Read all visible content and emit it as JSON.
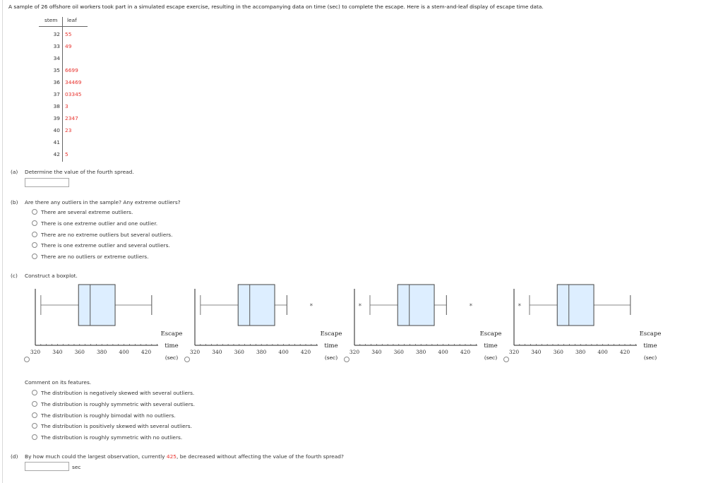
{
  "intro": "A sample of 26 offshore oil workers took part in a simulated escape exercise, resulting in the accompanying data on time (sec) to complete the escape. Here is a stem-and-leaf display of escape time data.",
  "stem_leaf": {
    "stem_header": "stem",
    "leaf_header": "leaf",
    "rows": [
      {
        "stem": "32",
        "leaf": "55"
      },
      {
        "stem": "33",
        "leaf": "49"
      },
      {
        "stem": "34",
        "leaf": ""
      },
      {
        "stem": "35",
        "leaf": "6699"
      },
      {
        "stem": "36",
        "leaf": "34469"
      },
      {
        "stem": "37",
        "leaf": "03345"
      },
      {
        "stem": "38",
        "leaf": "3"
      },
      {
        "stem": "39",
        "leaf": "2347"
      },
      {
        "stem": "40",
        "leaf": "23"
      },
      {
        "stem": "41",
        "leaf": ""
      },
      {
        "stem": "42",
        "leaf": "5"
      }
    ]
  },
  "part_a": {
    "label": "(a)",
    "question": "Determine the value of the fourth spread.",
    "answer_value": ""
  },
  "part_b": {
    "label": "(b)",
    "question": "Are there any outliers in the sample? Any extreme outliers?",
    "options": [
      "There are several extreme outliers.",
      "There is one extreme outlier and one outlier.",
      "There are no extreme outliers but several outliers.",
      "There is one extreme outlier and several outliers.",
      "There are no outliers or extreme outliers."
    ]
  },
  "part_c": {
    "label": "(c)",
    "question": "Construct a boxplot.",
    "axis_title_line1": "Escape",
    "axis_title_line2": "time",
    "axis_title_line3": "(sec)",
    "tick_labels": [
      "320",
      "340",
      "360",
      "380",
      "400",
      "420"
    ],
    "comment_prompt": "Comment on its features.",
    "comment_options": [
      "The distribution is negatively skewed with several outliers.",
      "The distribution is roughly symmetric with several outliers.",
      "The distribution is roughly bimodal with no outliers.",
      "The distribution is positively skewed with several outliers.",
      "The distribution is roughly symmetric with no outliers."
    ],
    "box_fill": "#ddeeff",
    "outlier_marker": "*"
  },
  "part_d": {
    "label": "(d)",
    "question_before": "By how much could the largest observation, currently ",
    "highlight_value": "425",
    "question_after": ", be decreased without affecting the value of the fourth spread?",
    "answer_value": "",
    "unit": "sec"
  },
  "chart_data": [
    {
      "type": "boxplot",
      "option": 1,
      "xlim": [
        320,
        430
      ],
      "xlabel": "Escape time (sec)",
      "whisker_low": 325,
      "q1": 359,
      "median": 369.5,
      "q3": 392,
      "whisker_high": 425,
      "outliers": []
    },
    {
      "type": "boxplot",
      "option": 2,
      "xlim": [
        320,
        430
      ],
      "xlabel": "Escape time (sec)",
      "whisker_low": 325,
      "q1": 359,
      "median": 369.5,
      "q3": 392,
      "whisker_high": 403,
      "outliers": [
        425
      ]
    },
    {
      "type": "boxplot",
      "option": 3,
      "xlim": [
        320,
        430
      ],
      "xlabel": "Escape time (sec)",
      "whisker_low": 334,
      "q1": 359,
      "median": 369.5,
      "q3": 392,
      "whisker_high": 403,
      "outliers": [
        325,
        425
      ]
    },
    {
      "type": "boxplot",
      "option": 4,
      "xlim": [
        320,
        430
      ],
      "xlabel": "Escape time (sec)",
      "whisker_low": 334,
      "q1": 359,
      "median": 369.5,
      "q3": 392,
      "whisker_high": 425,
      "outliers": [
        325
      ]
    }
  ]
}
